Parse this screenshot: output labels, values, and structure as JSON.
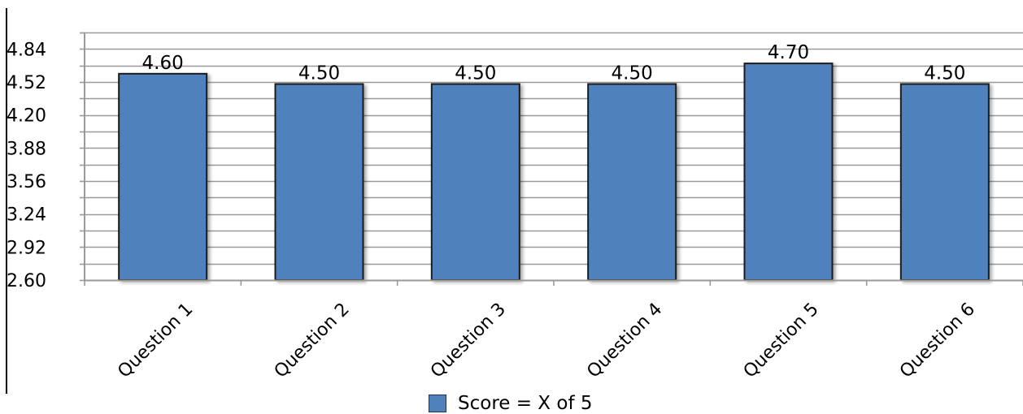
{
  "chart_data": {
    "type": "bar",
    "title": "",
    "xlabel": "",
    "ylabel": "",
    "categories": [
      "Question 1",
      "Question 2",
      "Question 3",
      "Question 4",
      "Question 5",
      "Question 6"
    ],
    "series": [
      {
        "name": "Score = X of 5",
        "values": [
          4.6,
          4.5,
          4.5,
          4.5,
          4.7,
          4.5
        ],
        "labels": [
          "4.60",
          "4.50",
          "4.50",
          "4.50",
          "4.70",
          "4.50"
        ]
      }
    ],
    "ylim": [
      2.6,
      5.0
    ],
    "y_ticks": [
      2.6,
      2.92,
      3.24,
      3.56,
      3.88,
      4.2,
      4.52,
      4.84
    ],
    "y_tick_labels": [
      "2.60",
      "2.92",
      "3.24",
      "3.56",
      "3.88",
      "4.20",
      "4.52",
      "4.84"
    ],
    "grid": true,
    "legend_position": "bottom",
    "colors": {
      "bar": "#4f81bd",
      "bar_border": "#1f1f1f",
      "grid": "#999999"
    }
  }
}
